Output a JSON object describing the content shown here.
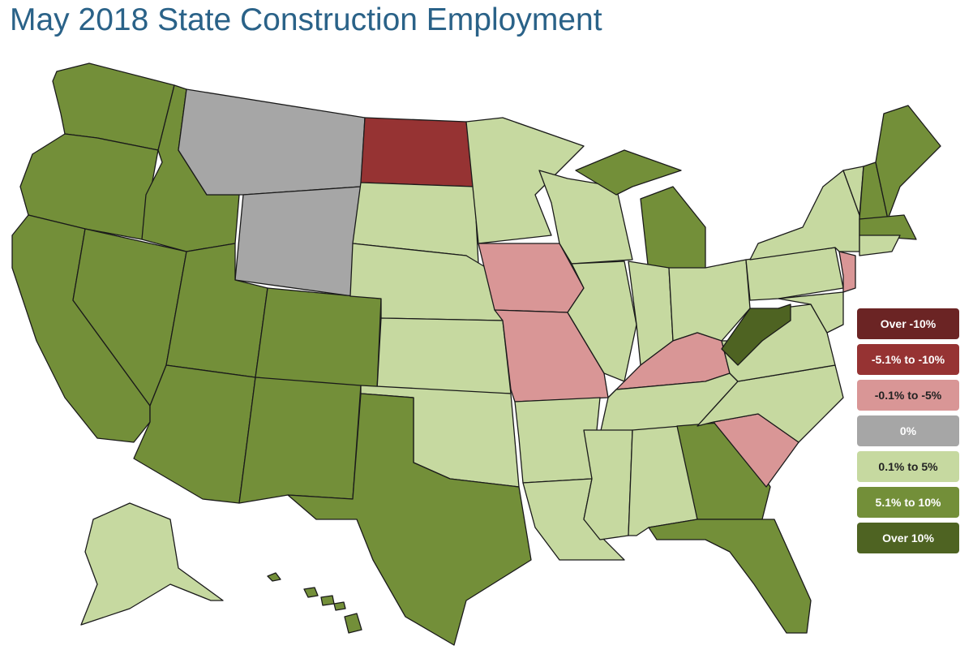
{
  "title": "May 2018 State Construction Employment",
  "legend": {
    "items": [
      {
        "label": "Over -10%",
        "color": "#6b2424",
        "text_color": "#ffffff"
      },
      {
        "label": "-5.1% to -10%",
        "color": "#963333",
        "text_color": "#ffffff"
      },
      {
        "label": "-0.1% to -5%",
        "color": "#d99696",
        "text_color": "#222222"
      },
      {
        "label": "0%",
        "color": "#a6a6a6",
        "text_color": "#ffffff"
      },
      {
        "label": "0.1% to 5%",
        "color": "#c6d9a0",
        "text_color": "#222222"
      },
      {
        "label": "5.1% to 10%",
        "color": "#738f39",
        "text_color": "#ffffff"
      },
      {
        "label": "Over 10%",
        "color": "#4e6322",
        "text_color": "#ffffff"
      }
    ]
  }
}
